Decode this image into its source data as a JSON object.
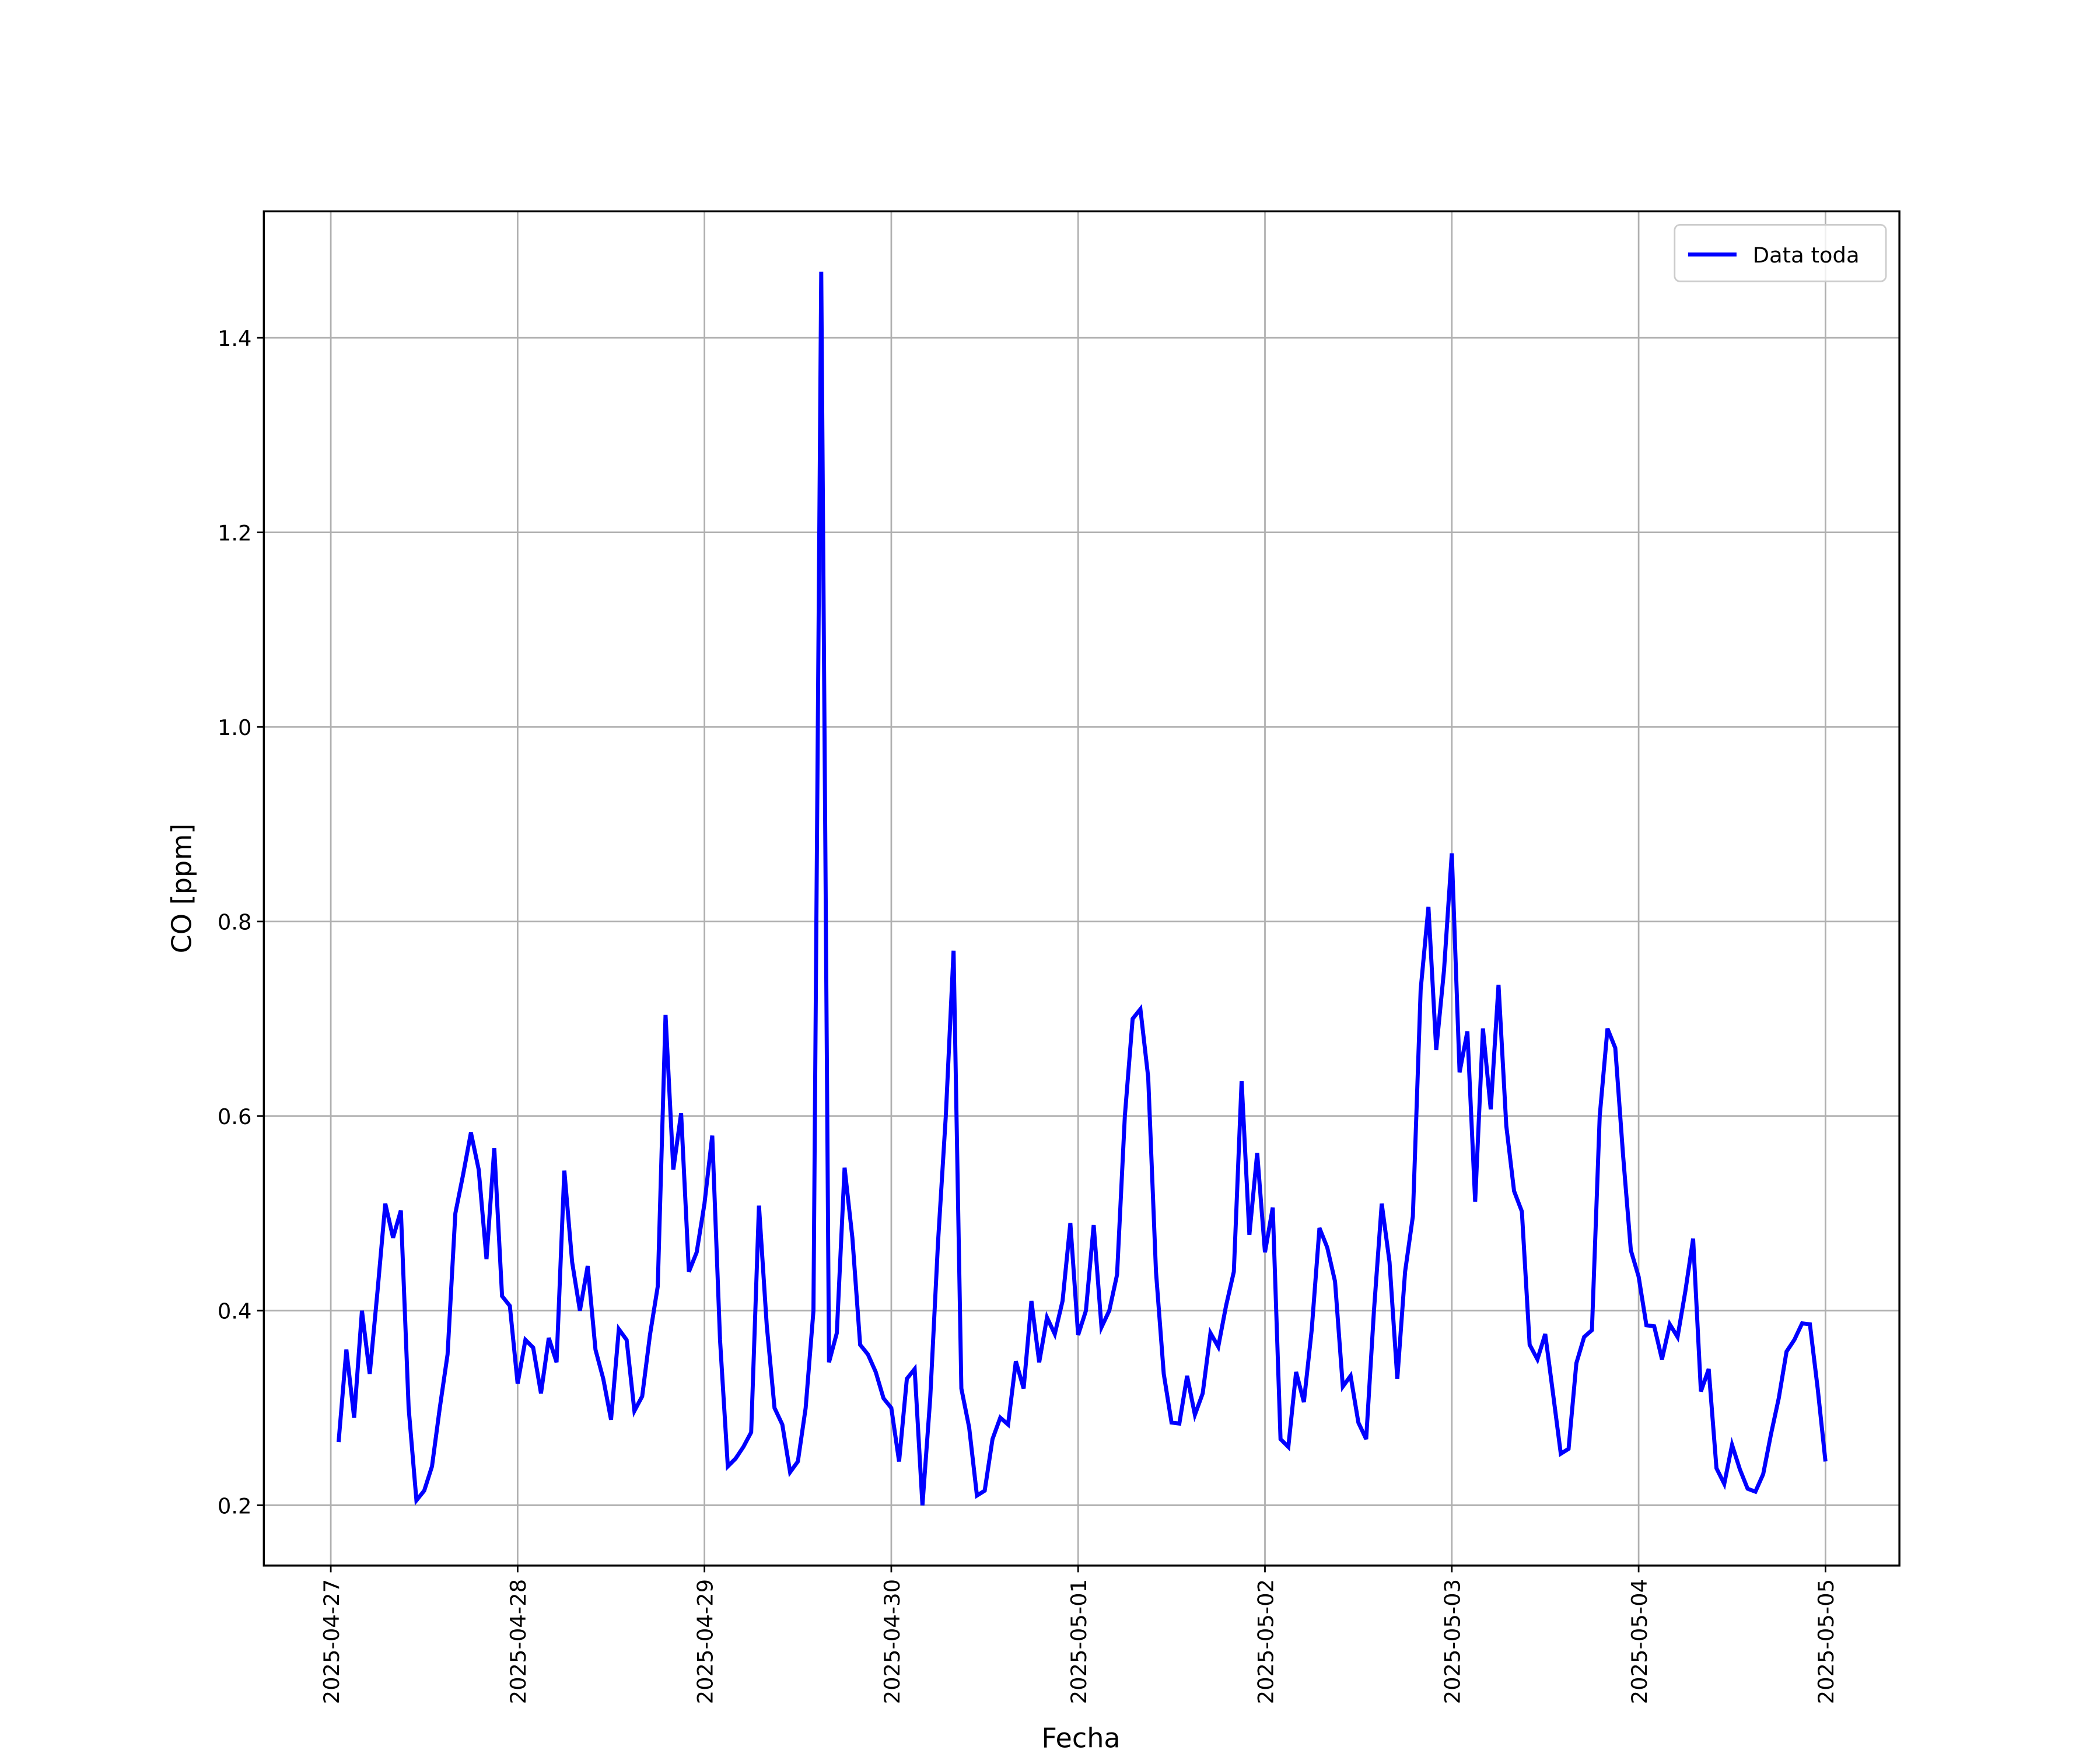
{
  "chart_data": {
    "type": "line",
    "xlabel": "Fecha",
    "ylabel": "CO [ppm]",
    "x": [
      1,
      2,
      3,
      4,
      5,
      6,
      7,
      8,
      9,
      10,
      11,
      12,
      13,
      14,
      15,
      16,
      17,
      18,
      19,
      20,
      21,
      22,
      23,
      24,
      25,
      26,
      27,
      28,
      29,
      30,
      31,
      32,
      33,
      34,
      35,
      36,
      37,
      38,
      39,
      40,
      41,
      42,
      43,
      44,
      45,
      46,
      47,
      48,
      49,
      50,
      51,
      52,
      53,
      54,
      55,
      56,
      57,
      58,
      59,
      60,
      61,
      62,
      63,
      64,
      65,
      66,
      67,
      68,
      69,
      70,
      71,
      72,
      73,
      74,
      75,
      76,
      77,
      78,
      79,
      80,
      81,
      82,
      83,
      84,
      85,
      86,
      87,
      88,
      89,
      90,
      91,
      92,
      93,
      94,
      95,
      96,
      97,
      98,
      99,
      100,
      101,
      102,
      103,
      104,
      105,
      106,
      107,
      108,
      109,
      110,
      111,
      112,
      113,
      114,
      115,
      116,
      117,
      118,
      119,
      120,
      121,
      122,
      123,
      124,
      125,
      126,
      127,
      128,
      129,
      130,
      131,
      132,
      133,
      134,
      135,
      136,
      137,
      138,
      139,
      140,
      141,
      142,
      143,
      144,
      145,
      146,
      147,
      148,
      149,
      150,
      151,
      152,
      153,
      154,
      155,
      156,
      157,
      158,
      159,
      160,
      161,
      162,
      163,
      164,
      165,
      166,
      167,
      168,
      169,
      170,
      171,
      172,
      173,
      174,
      175,
      176,
      177,
      178,
      179,
      180,
      181,
      182,
      183,
      184,
      185,
      186,
      187,
      188,
      189,
      190,
      191,
      192
    ],
    "series": [
      {
        "name": "Data toda",
        "color": "#0000ff",
        "values": [
          0.265,
          0.36,
          0.29,
          0.4,
          0.335,
          0.42,
          0.51,
          0.475,
          0.503,
          0.3,
          0.205,
          0.215,
          0.24,
          0.3,
          0.355,
          0.5,
          0.54,
          0.583,
          0.545,
          0.453,
          0.567,
          0.415,
          0.405,
          0.325,
          0.37,
          0.362,
          0.315,
          0.372,
          0.347,
          0.544,
          0.45,
          0.4,
          0.446,
          0.36,
          0.33,
          0.288,
          0.381,
          0.37,
          0.297,
          0.312,
          0.375,
          0.425,
          0.704,
          0.545,
          0.603,
          0.44,
          0.46,
          0.51,
          0.58,
          0.37,
          0.24,
          0.248,
          0.26,
          0.275,
          0.508,
          0.385,
          0.3,
          0.283,
          0.234,
          0.245,
          0.3,
          0.4,
          1.468,
          0.347,
          0.377,
          0.547,
          0.475,
          0.365,
          0.355,
          0.337,
          0.31,
          0.3,
          0.245,
          0.33,
          0.34,
          0.2,
          0.31,
          0.47,
          0.6,
          0.77,
          0.32,
          0.28,
          0.21,
          0.215,
          0.268,
          0.29,
          0.283,
          0.348,
          0.32,
          0.41,
          0.347,
          0.393,
          0.376,
          0.41,
          0.49,
          0.375,
          0.4,
          0.488,
          0.383,
          0.4,
          0.437,
          0.6,
          0.7,
          0.71,
          0.64,
          0.44,
          0.335,
          0.285,
          0.284,
          0.333,
          0.293,
          0.315,
          0.377,
          0.363,
          0.405,
          0.44,
          0.636,
          0.478,
          0.562,
          0.46,
          0.506,
          0.268,
          0.26,
          0.337,
          0.306,
          0.38,
          0.485,
          0.465,
          0.43,
          0.322,
          0.333,
          0.285,
          0.268,
          0.4,
          0.51,
          0.45,
          0.33,
          0.44,
          0.497,
          0.73,
          0.815,
          0.668,
          0.75,
          0.87,
          0.645,
          0.687,
          0.512,
          0.69,
          0.607,
          0.735,
          0.59,
          0.523,
          0.502,
          0.365,
          0.35,
          0.376,
          0.315,
          0.253,
          0.258,
          0.346,
          0.373,
          0.38,
          0.6,
          0.69,
          0.67,
          0.56,
          0.462,
          0.435,
          0.385,
          0.384,
          0.35,
          0.386,
          0.373,
          0.42,
          0.474,
          0.317,
          0.34,
          0.238,
          0.222,
          0.262,
          0.237,
          0.217,
          0.214,
          0.232,
          0.273,
          0.31,
          0.358,
          0.37,
          0.387,
          0.386,
          0.32,
          0.245
        ]
      }
    ],
    "xlim": [
      -8.6,
      201.5
    ],
    "xticks": [
      {
        "value": 0,
        "label": "2025-04-27"
      },
      {
        "value": 24,
        "label": "2025-04-28"
      },
      {
        "value": 48,
        "label": "2025-04-29"
      },
      {
        "value": 72,
        "label": "2025-04-30"
      },
      {
        "value": 96,
        "label": "2025-05-01"
      },
      {
        "value": 120,
        "label": "2025-05-02"
      },
      {
        "value": 144,
        "label": "2025-05-03"
      },
      {
        "value": 168,
        "label": "2025-05-04"
      },
      {
        "value": 192,
        "label": "2025-05-05"
      }
    ],
    "ylim": [
      0.138,
      1.53
    ],
    "yticks": [
      0.2,
      0.4,
      0.6,
      0.8,
      {
        "value": 1,
        "label": "1.0"
      },
      1.2,
      1.4
    ],
    "grid": true,
    "legend": "upper right"
  }
}
